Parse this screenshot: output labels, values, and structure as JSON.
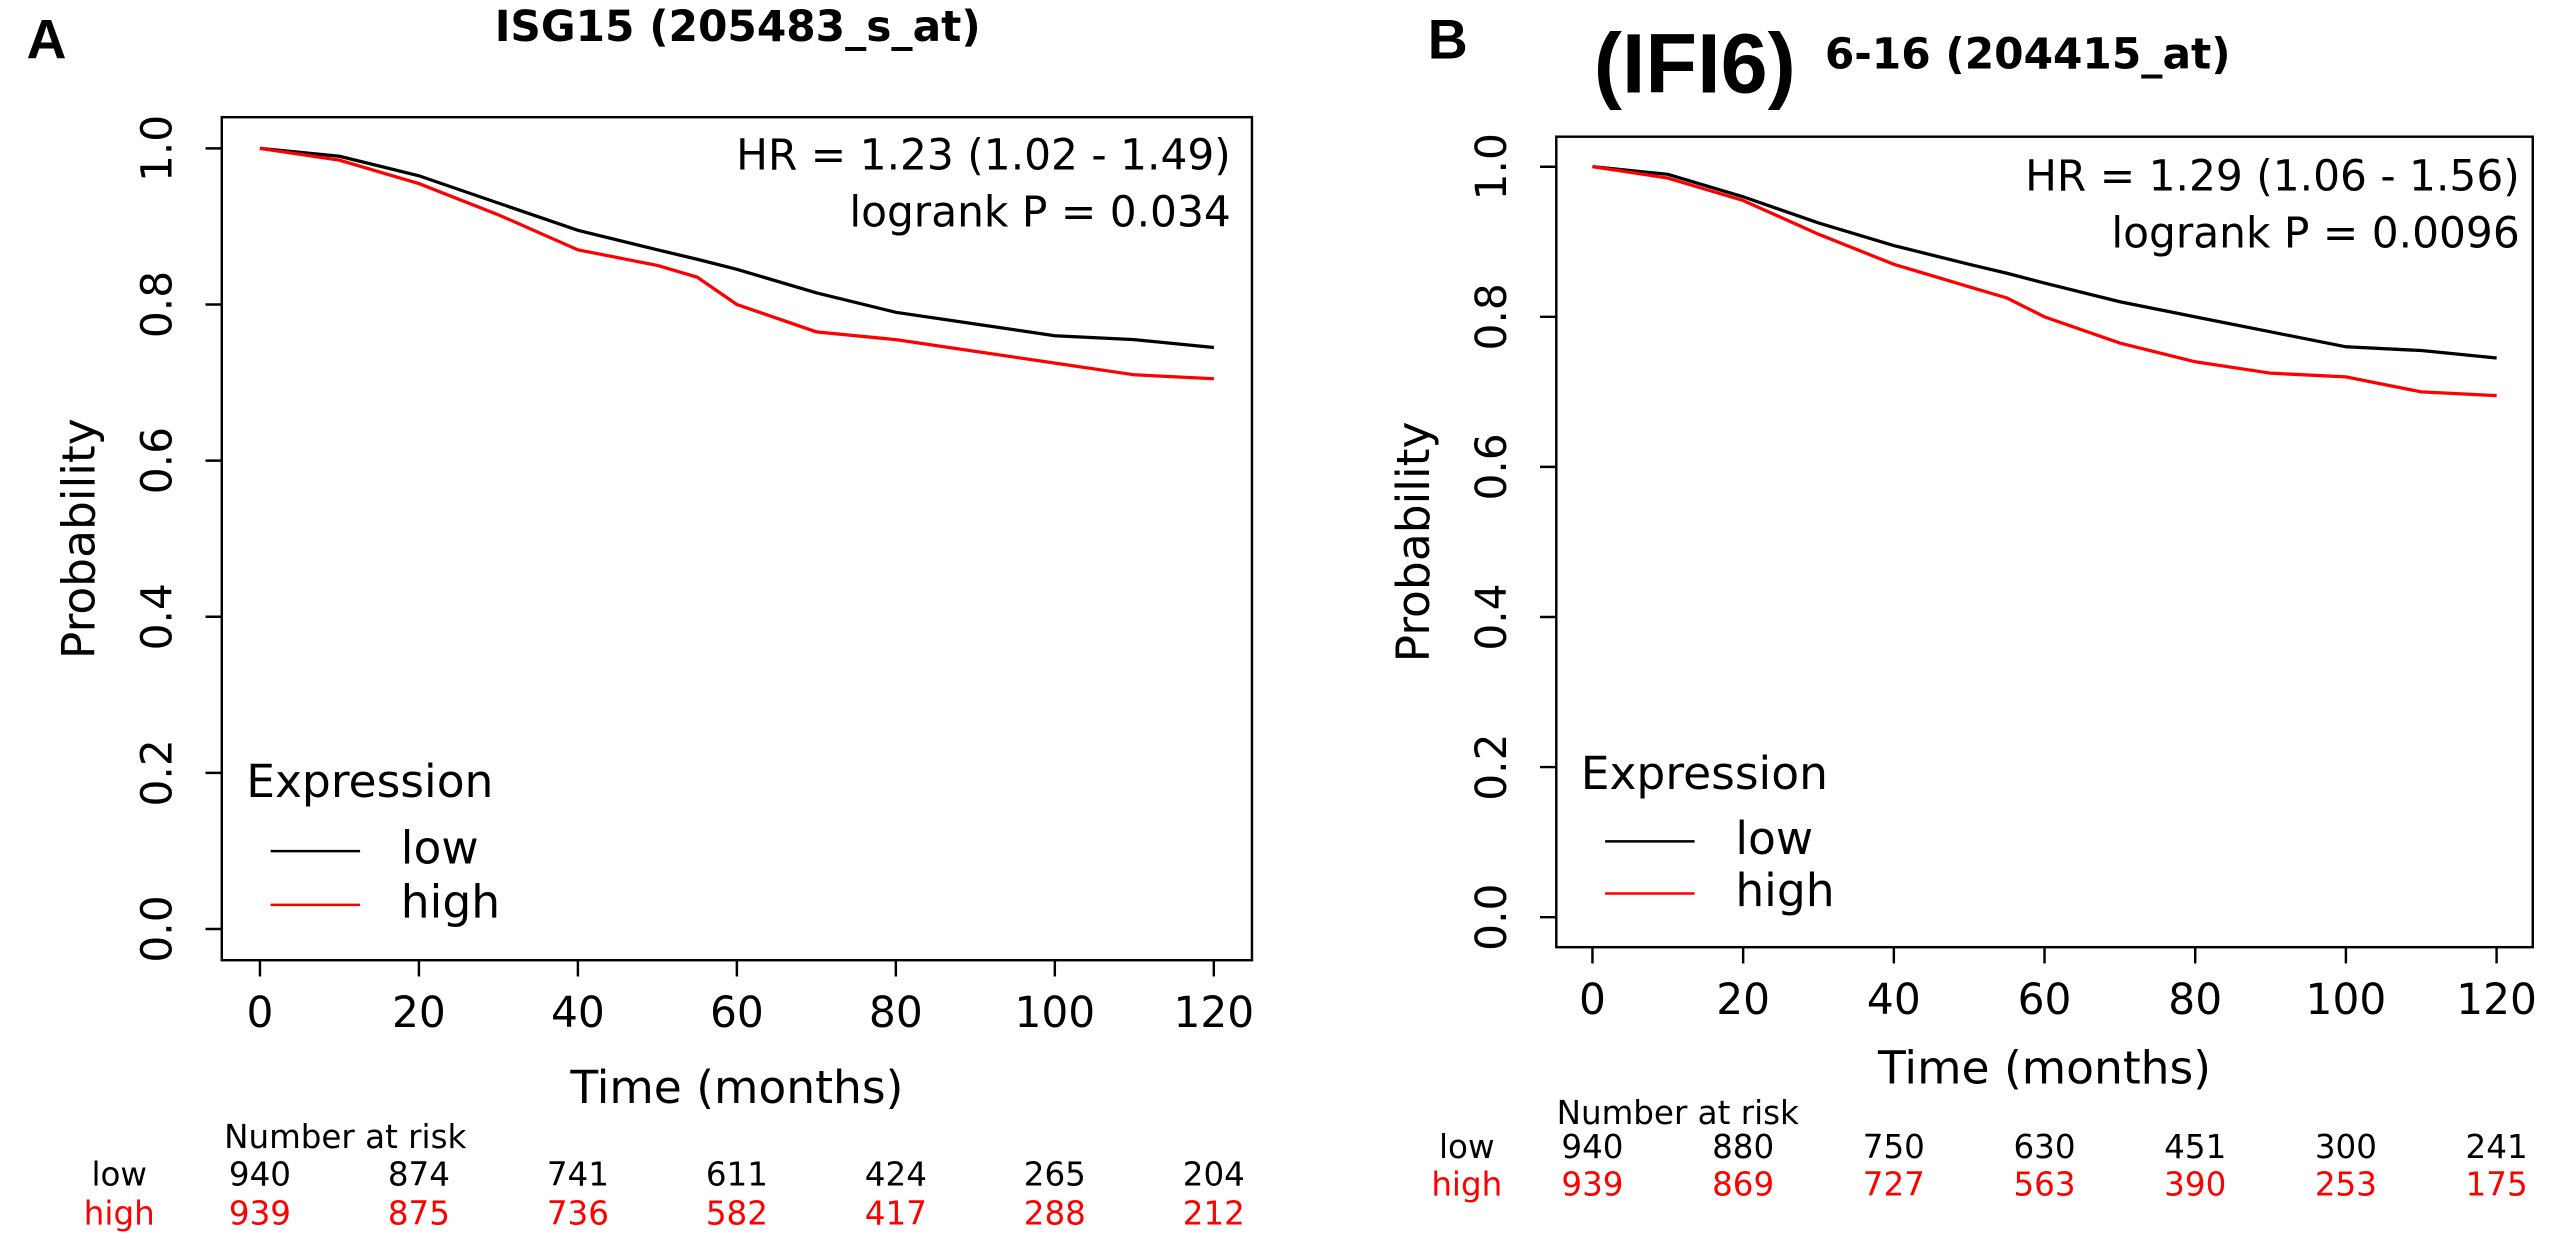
{
  "chart_data": [
    {
      "type": "line",
      "panel_label": "A",
      "title": "ISG15 (205483_s_at)",
      "annotations": [
        "HR = 1.23 (1.02 - 1.49)",
        "logrank P = 0.034"
      ],
      "xlabel": "Time (months)",
      "ylabel": "Probability",
      "legend_title": "Expression",
      "x": [
        0,
        10,
        20,
        30,
        40,
        50,
        55,
        60,
        70,
        80,
        90,
        100,
        110,
        120
      ],
      "series": [
        {
          "name": "low",
          "color": "#000000",
          "values": [
            1.0,
            0.99,
            0.965,
            0.93,
            0.895,
            0.87,
            0.858,
            0.845,
            0.815,
            0.79,
            0.775,
            0.76,
            0.755,
            0.745
          ]
        },
        {
          "name": "high",
          "color": "#ff0000",
          "values": [
            1.0,
            0.985,
            0.955,
            0.915,
            0.87,
            0.85,
            0.835,
            0.8,
            0.765,
            0.755,
            0.74,
            0.725,
            0.71,
            0.705
          ]
        }
      ],
      "xlim": [
        -4.8,
        124.8
      ],
      "ylim": [
        -0.04,
        1.04
      ],
      "xticks": [
        0,
        20,
        40,
        60,
        80,
        100,
        120
      ],
      "yticks": [
        {
          "value": 0,
          "label": "0.0"
        },
        {
          "value": 0.2,
          "label": "0.2"
        },
        {
          "value": 0.4,
          "label": "0.4"
        },
        {
          "value": 0.6,
          "label": "0.6"
        },
        {
          "value": 0.8,
          "label": "0.8"
        },
        {
          "value": 1,
          "label": "1.0"
        }
      ],
      "risk_table": {
        "title": "Number at risk",
        "rows": [
          [
            940,
            874,
            741,
            611,
            424,
            265,
            204
          ],
          [
            939,
            875,
            736,
            582,
            417,
            288,
            212
          ]
        ]
      }
    },
    {
      "type": "line",
      "panel_label": "B",
      "title_note": "(IFI6)",
      "title": "6-16 (204415_at)",
      "annotations": [
        "HR = 1.29 (1.06 - 1.56)",
        "logrank P = 0.0096"
      ],
      "xlabel": "Time (months)",
      "ylabel": "Probability",
      "legend_title": "Expression",
      "x": [
        0,
        10,
        20,
        30,
        40,
        50,
        55,
        60,
        70,
        80,
        90,
        100,
        110,
        120
      ],
      "series": [
        {
          "name": "low",
          "color": "#000000",
          "values": [
            1.0,
            0.99,
            0.96,
            0.925,
            0.895,
            0.87,
            0.858,
            0.845,
            0.82,
            0.8,
            0.78,
            0.76,
            0.755,
            0.745
          ]
        },
        {
          "name": "high",
          "color": "#ff0000",
          "values": [
            1.0,
            0.985,
            0.955,
            0.91,
            0.87,
            0.84,
            0.825,
            0.8,
            0.765,
            0.74,
            0.725,
            0.72,
            0.7,
            0.695
          ]
        }
      ],
      "xlim": [
        -4.8,
        124.8
      ],
      "ylim": [
        -0.04,
        1.04
      ],
      "xticks": [
        0,
        20,
        40,
        60,
        80,
        100,
        120
      ],
      "yticks": [
        {
          "value": 0,
          "label": "0.0"
        },
        {
          "value": 0.2,
          "label": "0.2"
        },
        {
          "value": 0.4,
          "label": "0.4"
        },
        {
          "value": 0.6,
          "label": "0.6"
        },
        {
          "value": 0.8,
          "label": "0.8"
        },
        {
          "value": 1,
          "label": "1.0"
        }
      ],
      "risk_table": {
        "title": "Number at risk",
        "rows": [
          [
            940,
            880,
            750,
            630,
            451,
            300,
            241
          ],
          [
            939,
            869,
            727,
            563,
            390,
            253,
            175
          ]
        ]
      }
    }
  ]
}
